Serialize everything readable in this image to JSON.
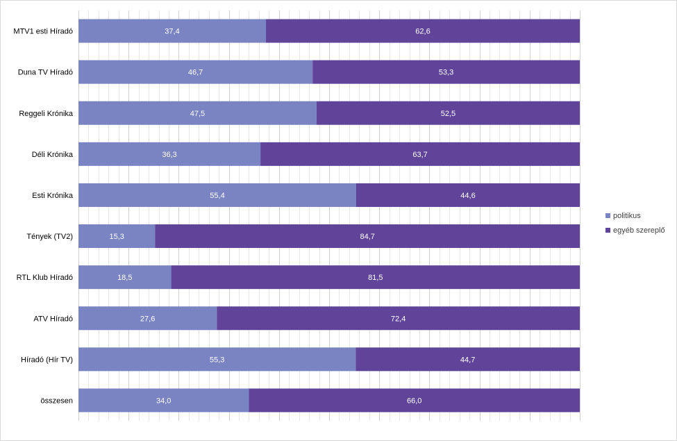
{
  "chart_data": {
    "type": "bar",
    "orientation": "horizontal",
    "stacked": "percent",
    "categories": [
      "MTV1 esti Híradó",
      "Duna TV Híradó",
      "Reggeli Krónika",
      "Déli Krónika",
      "Esti Krónika",
      "Tények (TV2)",
      "RTL Klub Híradó",
      "ATV Híradó",
      "Híradó (Hír TV)",
      "összesen"
    ],
    "series": [
      {
        "name": "politikus",
        "color": "#7a84c2",
        "values": [
          37.4,
          46.7,
          47.5,
          36.3,
          55.4,
          15.3,
          18.5,
          27.6,
          55.3,
          34.0
        ],
        "labels": [
          "37,4",
          "46,7",
          "47,5",
          "36,3",
          "55,4",
          "15,3",
          "18,5",
          "27,6",
          "55,3",
          "34,0"
        ]
      },
      {
        "name": "egyéb szereplő",
        "color": "#60449a",
        "values": [
          62.6,
          53.3,
          52.5,
          63.7,
          44.6,
          84.7,
          81.5,
          72.4,
          44.7,
          66.0
        ],
        "labels": [
          "62,6",
          "53,3",
          "52,5",
          "63,7",
          "44,6",
          "84,7",
          "81,5",
          "72,4",
          "44,7",
          "66,0"
        ]
      }
    ],
    "xlim": [
      0,
      100
    ],
    "grid": true,
    "legend_position": "right"
  }
}
